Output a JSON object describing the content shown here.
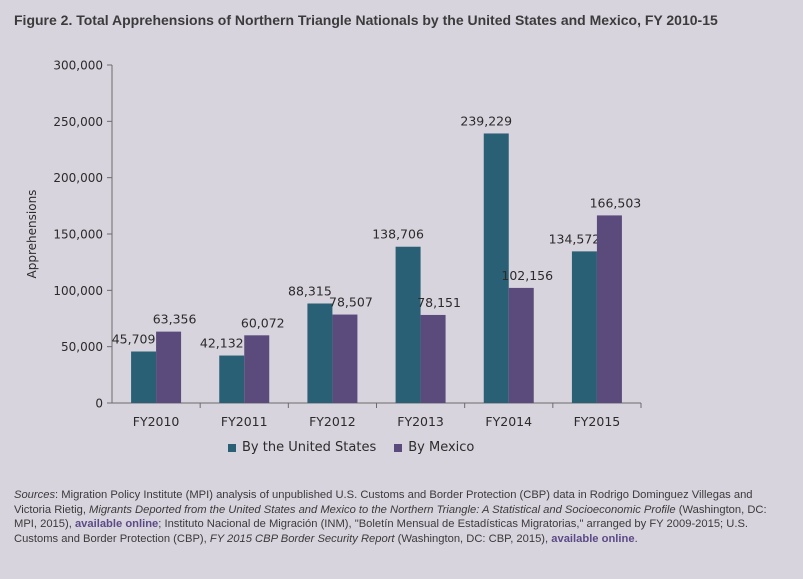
{
  "figure": {
    "title": "Figure 2. Total Apprehensions of Northern Triangle Nationals by the United States and Mexico, FY 2010-15"
  },
  "chart_data": {
    "type": "bar",
    "title": "Figure 2. Total Apprehensions of Northern Triangle Nationals by the United States and Mexico, FY 2010-15",
    "xlabel": "",
    "ylabel": "Apprehensions",
    "ylim": [
      0,
      300000
    ],
    "yticks": [
      0,
      50000,
      100000,
      150000,
      200000,
      250000,
      300000
    ],
    "ytick_labels": [
      "0",
      "50,000",
      "100,000",
      "150,000",
      "200,000",
      "250,000",
      "300,000"
    ],
    "categories": [
      "FY2010",
      "FY2011",
      "FY2012",
      "FY2013",
      "FY2014",
      "FY2015"
    ],
    "series": [
      {
        "name": "By the United States",
        "color": "#2a6075",
        "values": [
          45709,
          42132,
          88315,
          138706,
          239229,
          134572
        ],
        "labels": [
          "45,709",
          "42,132",
          "88,315",
          "138,706",
          "239,229",
          "134,572"
        ]
      },
      {
        "name": "By Mexico",
        "color": "#5b4b7c",
        "values": [
          63356,
          60072,
          78507,
          78151,
          102156,
          166503
        ],
        "labels": [
          "63,356",
          "60,072",
          "78,507",
          "78,151",
          "102,156",
          "166,503"
        ]
      }
    ],
    "legend_position": "bottom",
    "grid": false
  },
  "sources": {
    "label": "Sources",
    "part1": ": Migration Policy Institute (MPI) analysis of unpublished U.S. Customs and Border Protection (CBP) data in Rodrigo Dominguez Villegas and Victoria Rietig, ",
    "title1": "Migrants Deported from the United States and Mexico to the Northern Triangle: A Statistical and Socioeconomic Profile",
    "part2": " (Washington, DC: MPI, 2015), ",
    "link1": "available online",
    "part3": "; Instituto Nacional de Migración (INM), \"Boletín Mensual de Estadísticas Migratorias,\" arranged by FY 2009-2015; U.S. Customs and Border Protection (CBP), ",
    "title2": "FY 2015 CBP Border Security Report",
    "part4": " (Washington, DC: CBP, 2015), ",
    "link2": "available online",
    "part5": "."
  }
}
